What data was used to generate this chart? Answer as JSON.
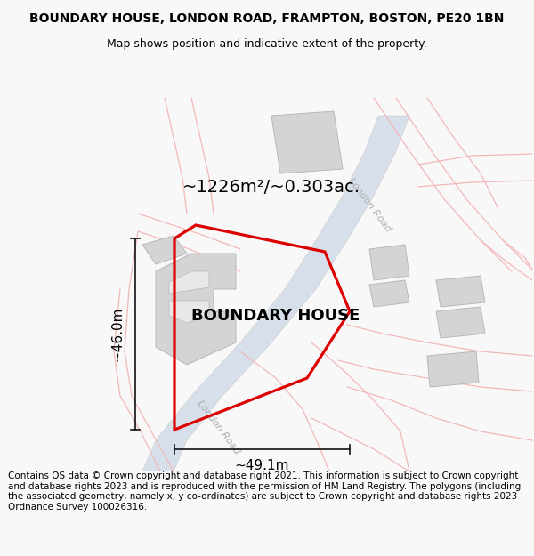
{
  "title": "BOUNDARY HOUSE, LONDON ROAD, FRAMPTON, BOSTON, PE20 1BN",
  "subtitle": "Map shows position and indicative extent of the property.",
  "footer": "Contains OS data © Crown copyright and database right 2021. This information is subject to Crown copyright and database rights 2023 and is reproduced with the permission of HM Land Registry. The polygons (including the associated geometry, namely x, y co-ordinates) are subject to Crown copyright and database rights 2023 Ordnance Survey 100026316.",
  "property_label": "BOUNDARY HOUSE",
  "area_label": "~1226m²/~0.303ac.",
  "dim_height": "~46.0m",
  "dim_width": "~49.1m",
  "background_color": "#f8f8f8",
  "map_bg": "#ffffff",
  "road_color": "#ccd9e6",
  "road_outline": "#c8c8c8",
  "property_outline_color": "#dd0000",
  "building_color": "#d4d4d4",
  "building_edge": "#b8b8b8",
  "road_pink": "#f2b8b8",
  "dim_line_color": "#111111",
  "title_fontsize": 10,
  "subtitle_fontsize": 9,
  "footer_fontsize": 7.5,
  "property_label_fontsize": 13,
  "area_label_fontsize": 14,
  "dim_fontsize": 11,
  "road_label_color": "#aaaaaa",
  "road_label_color2": "#b0b0b0"
}
